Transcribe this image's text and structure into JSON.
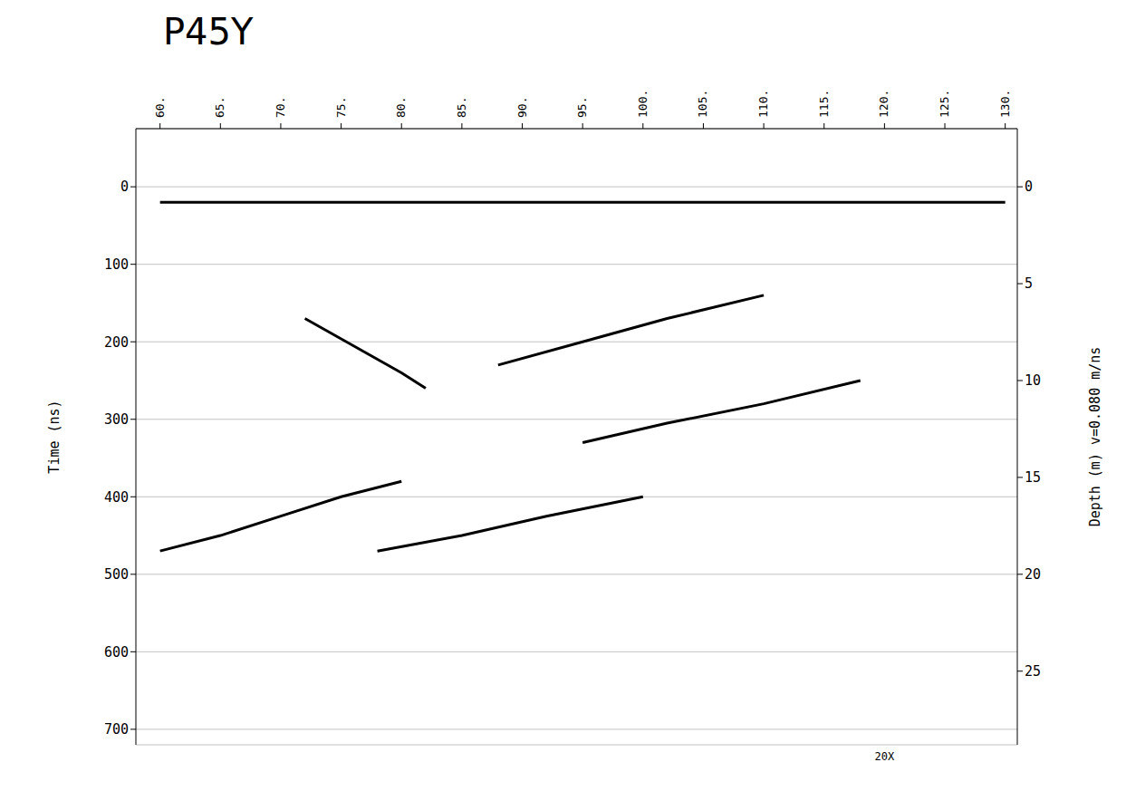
{
  "chart_data": {
    "type": "line",
    "title": "P45Y",
    "ylabel": "Time (ns)",
    "y2label": "Depth (m) v=0.080 m/ns",
    "xlim": [
      58,
      131
    ],
    "xticks": [
      {
        "value": 60,
        "label": "60."
      },
      {
        "value": 65,
        "label": "65."
      },
      {
        "value": 70,
        "label": "70."
      },
      {
        "value": 75,
        "label": "75."
      },
      {
        "value": 80,
        "label": "80."
      },
      {
        "value": 85,
        "label": "85."
      },
      {
        "value": 90,
        "label": "90."
      },
      {
        "value": 95,
        "label": "95."
      },
      {
        "value": 100,
        "label": "100."
      },
      {
        "value": 105,
        "label": "105."
      },
      {
        "value": 110,
        "label": "110."
      },
      {
        "value": 115,
        "label": "115."
      },
      {
        "value": 120,
        "label": "120."
      },
      {
        "value": 125,
        "label": "125."
      },
      {
        "value": 130,
        "label": "130."
      }
    ],
    "ylim": [
      -75,
      720
    ],
    "yticks": [
      0,
      100,
      200,
      300,
      400,
      500,
      600,
      700
    ],
    "y2lim": [
      -3,
      28.8
    ],
    "y2ticks": [
      0,
      5,
      10,
      15,
      20,
      25
    ],
    "grid": true,
    "series": [
      {
        "color": "#000000",
        "x": [
          60,
          70,
          80,
          90,
          100,
          110,
          120,
          130
        ],
        "values": [
          20,
          20,
          20,
          20,
          20,
          20,
          20,
          20
        ]
      },
      {
        "color": "#000000",
        "x": [
          72,
          76,
          80,
          82
        ],
        "values": [
          170,
          205,
          240,
          260
        ]
      },
      {
        "color": "#000000",
        "x": [
          60,
          65,
          70,
          75,
          80
        ],
        "values": [
          470,
          450,
          425,
          400,
          380
        ]
      },
      {
        "color": "#000000",
        "x": [
          78,
          85,
          92,
          100
        ],
        "values": [
          470,
          450,
          425,
          400
        ]
      },
      {
        "color": "#000000",
        "x": [
          88,
          95,
          102,
          110
        ],
        "values": [
          230,
          200,
          170,
          140
        ]
      },
      {
        "color": "#000000",
        "x": [
          95,
          102,
          110,
          118
        ],
        "values": [
          330,
          305,
          280,
          250
        ]
      }
    ],
    "annotations": [
      {
        "text": "20X",
        "x": 120,
        "y": 720
      }
    ]
  }
}
